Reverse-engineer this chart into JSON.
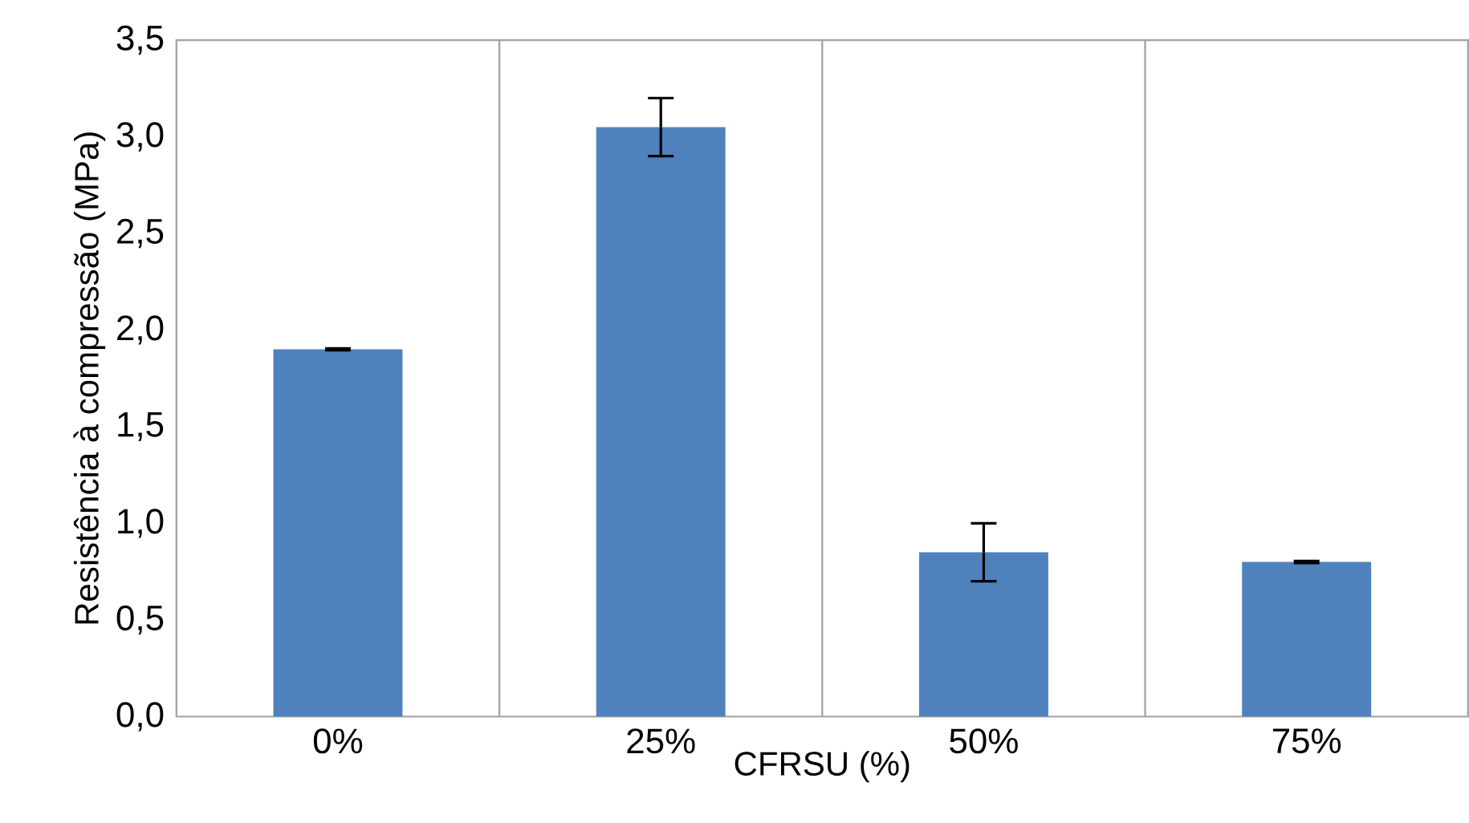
{
  "chart_data": {
    "type": "bar",
    "xlabel": "CFRSU (%)",
    "ylabel": "Resistência à compressão (MPa)",
    "categories": [
      "0%",
      "25%",
      "50%",
      "75%"
    ],
    "values": [
      1.9,
      3.05,
      0.85,
      0.8
    ],
    "errors": [
      0.005,
      0.15,
      0.15,
      0.005
    ],
    "color": "#4f81bd",
    "ylim": [
      0,
      3.5
    ],
    "yticks": [
      {
        "value": 0,
        "label": "0,0"
      },
      {
        "value": 0.5,
        "label": "0,5"
      },
      {
        "value": 1,
        "label": "1,0"
      },
      {
        "value": 1.5,
        "label": "1,5"
      },
      {
        "value": 2,
        "label": "2,0"
      },
      {
        "value": 2.5,
        "label": "2,5"
      },
      {
        "value": 3,
        "label": "3,0"
      },
      {
        "value": 3.5,
        "label": "3,5"
      }
    ],
    "grid": "x"
  }
}
